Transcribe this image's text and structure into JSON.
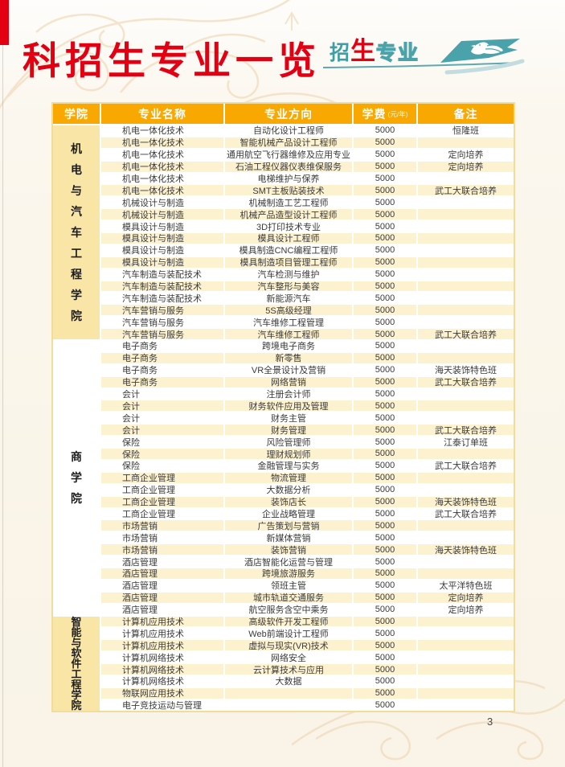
{
  "page": {
    "title": "科招生专业一览",
    "page_number": "3",
    "badge": {
      "part1": "招",
      "part2": "生",
      "part3": "专业"
    },
    "colors": {
      "accent_red": "#E30012",
      "header_orange": "#F8A800",
      "teal": "#45A0A8",
      "row_white": "#FFFFFF",
      "row_cream": "#FDF2D0",
      "college_cream": "#F9E5A5",
      "college_white": "#FFFFFF",
      "table_border": "#F2DC9B"
    }
  },
  "table": {
    "headers": {
      "college": "学院",
      "major": "专业名称",
      "direction": "专业方向",
      "tuition": "学费",
      "tuition_unit": "(元/年)",
      "note": "备注"
    },
    "row_fields": [
      "major",
      "direction",
      "tuition",
      "note"
    ],
    "sections": [
      {
        "college": "机电与汽车工程学院",
        "college_bg": "#F9E5A5",
        "rows": [
          [
            "机电一体化技术",
            "自动化设计工程师",
            "5000",
            "恒隆班"
          ],
          [
            "机电一体化技术",
            "智能机械产品设计工程师",
            "5000",
            ""
          ],
          [
            "机电一体化技术",
            "通用航空飞行器维修及应用专业",
            "5000",
            "定向培养"
          ],
          [
            "机电一体化技术",
            "石油工程仪器仪表维保服务",
            "5000",
            "定向培养"
          ],
          [
            "机电一体化技术",
            "电梯维护与保养",
            "5000",
            ""
          ],
          [
            "机电一体化技术",
            "SMT主板贴装技术",
            "5000",
            "武工大联合培养"
          ],
          [
            "机械设计与制造",
            "机械制造工艺工程师",
            "5000",
            ""
          ],
          [
            "机械设计与制造",
            "机械产品造型设计工程师",
            "5000",
            ""
          ],
          [
            "模具设计与制造",
            "3D打印技术专业",
            "5000",
            ""
          ],
          [
            "模具设计与制造",
            "模具设计工程师",
            "5000",
            ""
          ],
          [
            "模具设计与制造",
            "模具制造CNC编程工程师",
            "5000",
            ""
          ],
          [
            "模具设计与制造",
            "模具制造项目管理工程师",
            "5000",
            ""
          ],
          [
            "汽车制造与装配技术",
            "汽车检测与维护",
            "5000",
            ""
          ],
          [
            "汽车制造与装配技术",
            "汽车整形与美容",
            "5000",
            ""
          ],
          [
            "汽车制造与装配技术",
            "新能源汽车",
            "5000",
            ""
          ],
          [
            "汽车营销与服务",
            "5S高级经理",
            "5000",
            ""
          ],
          [
            "汽车营销与服务",
            "汽车维修工程管理",
            "5000",
            ""
          ],
          [
            "汽车营销与服务",
            "汽车维修工程师",
            "5000",
            "武工大联合培养"
          ]
        ]
      },
      {
        "college": "商学院",
        "college_bg": "#FFFFFF",
        "rows": [
          [
            "电子商务",
            "跨境电子商务",
            "5000",
            ""
          ],
          [
            "电子商务",
            "新零售",
            "5000",
            ""
          ],
          [
            "电子商务",
            "VR全景设计及营销",
            "5000",
            "海天装饰特色班"
          ],
          [
            "电子商务",
            "网络营销",
            "5000",
            "武工大联合培养"
          ],
          [
            "会计",
            "注册会计师",
            "5000",
            ""
          ],
          [
            "会计",
            "财务软件应用及管理",
            "5000",
            ""
          ],
          [
            "会计",
            "财务主管",
            "5000",
            ""
          ],
          [
            "会计",
            "财务管理",
            "5000",
            "武工大联合培养"
          ],
          [
            "保险",
            "风险管理师",
            "5000",
            "江泰订单班"
          ],
          [
            "保险",
            "理财规划师",
            "5000",
            ""
          ],
          [
            "保险",
            "金融管理与实务",
            "5000",
            "武工大联合培养"
          ],
          [
            "工商企业管理",
            "物流管理",
            "5000",
            ""
          ],
          [
            "工商企业管理",
            "大数据分析",
            "5000",
            ""
          ],
          [
            "工商企业管理",
            "装饰店长",
            "5000",
            "海天装饰特色班"
          ],
          [
            "工商企业管理",
            "企业战略管理",
            "5000",
            "武工大联合培养"
          ],
          [
            "市场营销",
            "广告策划与营销",
            "5000",
            ""
          ],
          [
            "市场营销",
            "新媒体营销",
            "5000",
            ""
          ],
          [
            "市场营销",
            "装饰营销",
            "5000",
            "海天装饰特色班"
          ],
          [
            "酒店管理",
            "酒店智能化运营与管理",
            "5000",
            ""
          ],
          [
            "酒店管理",
            "跨境旅游服务",
            "5000",
            ""
          ],
          [
            "酒店管理",
            "领班主管",
            "5000",
            "太平洋特色班"
          ],
          [
            "酒店管理",
            "城市轨道交通服务",
            "5000",
            "定向培养"
          ],
          [
            "酒店管理",
            "航空服务含空中乘务",
            "5000",
            "定向培养"
          ]
        ]
      },
      {
        "college": "智能与软件工程学院",
        "college_bg": "#F9E5A5",
        "rows": [
          [
            "计算机应用技术",
            "高级软件开发工程师",
            "5000",
            ""
          ],
          [
            "计算机应用技术",
            "Web前端设计工程师",
            "5000",
            ""
          ],
          [
            "计算机应用技术",
            "虚拟与现实(VR)技术",
            "5000",
            ""
          ],
          [
            "计算机网络技术",
            "网络安全",
            "5000",
            ""
          ],
          [
            "计算机网络技术",
            "云计算技术与应用",
            "5000",
            ""
          ],
          [
            "计算机网络技术",
            "大数据",
            "5000",
            ""
          ],
          [
            "物联网应用技术",
            "",
            "5000",
            ""
          ],
          [
            "电子竞技运动与管理",
            "",
            "5000",
            ""
          ]
        ]
      }
    ]
  }
}
